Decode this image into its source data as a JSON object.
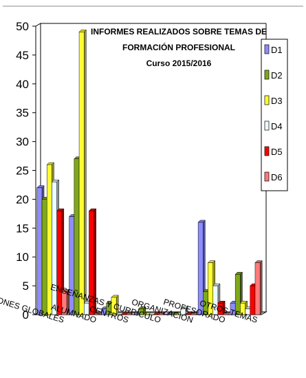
{
  "chart_data": {
    "type": "bar",
    "title_lines": [
      "INFORMES REALIZADOS SOBRE TEMAS DE",
      "FORMACIÓN PROFESIONAL",
      "Curso 2015/2016"
    ],
    "categories": [
      "ACTUACIONES GLOBALES",
      "ALUMNADO",
      "CENTROS",
      "ENSEÑANZAS Y CURRÍCULO",
      "ORGANIZACIÓN",
      "PROFESORADO",
      "OTROS TEMAS"
    ],
    "series": [
      {
        "name": "D1",
        "color": "#8d8dff",
        "values": [
          22,
          17,
          1,
          0,
          0,
          16,
          2
        ]
      },
      {
        "name": "D2",
        "color": "#7fa81a",
        "values": [
          20,
          27,
          2,
          1,
          0,
          4,
          7
        ]
      },
      {
        "name": "D3",
        "color": "#ffff33",
        "values": [
          26,
          49,
          3,
          0,
          0,
          9,
          2
        ]
      },
      {
        "name": "D4",
        "color": "#eafcff",
        "values": [
          23,
          2,
          0,
          0,
          1,
          5,
          1
        ]
      },
      {
        "name": "D5",
        "color": "#ff0000",
        "values": [
          18,
          18,
          0,
          0,
          0,
          2,
          5
        ]
      },
      {
        "name": "D6",
        "color": "#ff7a7a",
        "values": [
          4,
          0,
          0,
          0,
          0,
          0,
          9
        ]
      }
    ],
    "yticks": [
      0,
      5,
      10,
      15,
      20,
      25,
      30,
      35,
      40,
      45,
      50
    ],
    "ylim": [
      0,
      50
    ],
    "legend": "right",
    "grid": false
  }
}
